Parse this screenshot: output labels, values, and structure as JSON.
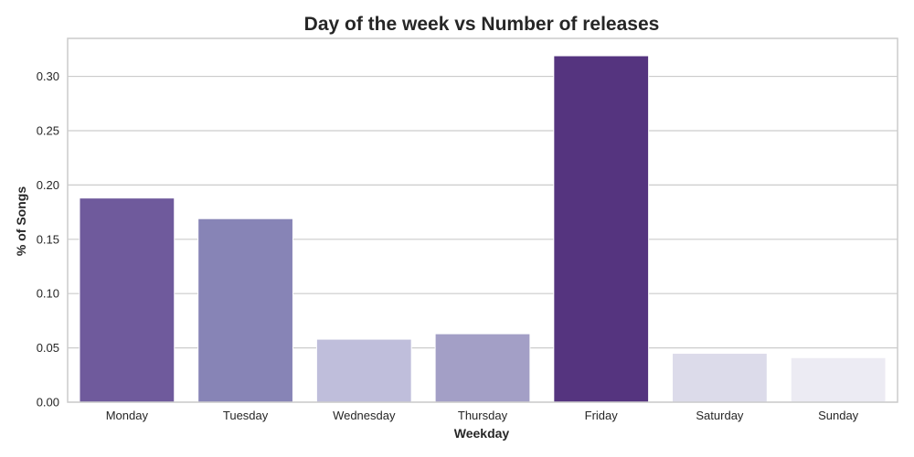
{
  "chart_data": {
    "type": "bar",
    "title": "Day of the week vs Number of releases",
    "xlabel": "Weekday",
    "ylabel": "% of Songs",
    "categories": [
      "Monday",
      "Tuesday",
      "Wednesday",
      "Thursday",
      "Friday",
      "Saturday",
      "Sunday"
    ],
    "values": [
      0.188,
      0.169,
      0.058,
      0.063,
      0.319,
      0.045,
      0.041
    ],
    "colors": [
      "#6f5a9c",
      "#8784b6",
      "#bfbedb",
      "#a39fc6",
      "#55347f",
      "#dcdbea",
      "#ecebf3"
    ],
    "ylim": [
      0,
      0.335
    ],
    "yticks": [
      0.0,
      0.05,
      0.1,
      0.15,
      0.2,
      0.25,
      0.3
    ],
    "ytick_labels": [
      "0.00",
      "0.05",
      "0.10",
      "0.15",
      "0.20",
      "0.25",
      "0.30"
    ],
    "grid": "horizontal",
    "legend": "none"
  }
}
